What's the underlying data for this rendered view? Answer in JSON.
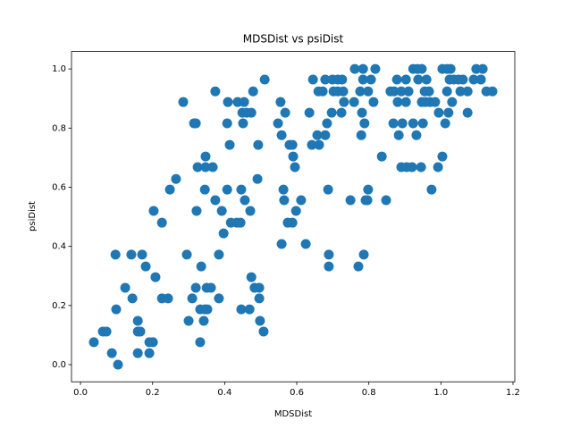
{
  "chart_data": {
    "type": "scatter",
    "title": "MDSDist vs psiDist",
    "xlabel": "MDSDist",
    "ylabel": "psiDist",
    "color": "#1f77b4",
    "x": [
      0.037,
      0.062,
      0.072,
      0.087,
      0.104,
      0.099,
      0.097,
      0.124,
      0.141,
      0.144,
      0.159,
      0.159,
      0.166,
      0.159,
      0.171,
      0.181,
      0.191,
      0.201,
      0.191,
      0.208,
      0.203,
      0.226,
      0.226,
      0.243,
      0.248,
      0.265,
      0.285,
      0.295,
      0.3,
      0.31,
      0.315,
      0.32,
      0.32,
      0.322,
      0.325,
      0.332,
      0.332,
      0.335,
      0.342,
      0.345,
      0.352,
      0.347,
      0.347,
      0.345,
      0.35,
      0.362,
      0.367,
      0.374,
      0.374,
      0.384,
      0.384,
      0.392,
      0.397,
      0.407,
      0.407,
      0.409,
      0.414,
      0.417,
      0.434,
      0.444,
      0.436,
      0.446,
      0.446,
      0.449,
      0.461,
      0.474,
      0.451,
      0.454,
      0.456,
      0.469,
      0.471,
      0.474,
      0.479,
      0.483,
      0.491,
      0.493,
      0.496,
      0.496,
      0.498,
      0.508,
      0.511,
      0.548,
      0.555,
      0.558,
      0.558,
      0.563,
      0.568,
      0.565,
      0.575,
      0.588,
      0.58,
      0.588,
      0.59,
      0.595,
      0.598,
      0.612,
      0.625,
      0.635,
      0.642,
      0.645,
      0.657,
      0.66,
      0.672,
      0.662,
      0.679,
      0.679,
      0.684,
      0.687,
      0.689,
      0.689,
      0.697,
      0.699,
      0.714,
      0.726,
      0.702,
      0.714,
      0.729,
      0.724,
      0.731,
      0.749,
      0.759,
      0.761,
      0.771,
      0.776,
      0.779,
      0.781,
      0.784,
      0.786,
      0.784,
      0.788,
      0.791,
      0.796,
      0.798,
      0.798,
      0.806,
      0.813,
      0.818,
      0.836,
      0.848,
      0.86,
      0.87,
      0.868,
      0.878,
      0.88,
      0.883,
      0.89,
      0.89,
      0.905,
      0.92,
      0.893,
      0.903,
      0.903,
      0.91,
      0.923,
      0.935,
      0.947,
      0.923,
      0.932,
      0.937,
      0.945,
      0.947,
      0.957,
      0.95,
      0.955,
      0.967,
      0.96,
      0.97,
      0.984,
      0.974,
      1.004,
      0.994,
      0.992,
      1.004,
      1.017,
      1.027,
      1.012,
      1.017,
      1.021,
      1.024,
      1.036,
      1.049,
      1.061,
      1.031,
      1.054,
      1.074,
      1.074,
      1.091,
      1.098,
      1.116,
      1.111,
      1.126,
      1.143
    ],
    "values": [
      0.076,
      0.112,
      0.112,
      0.039,
      0.0,
      0.187,
      0.372,
      0.26,
      0.372,
      0.224,
      0.148,
      0.112,
      0.112,
      0.039,
      0.372,
      0.332,
      0.076,
      0.076,
      0.039,
      0.296,
      0.52,
      0.48,
      0.224,
      0.224,
      0.592,
      0.628,
      0.888,
      0.372,
      0.148,
      0.224,
      0.816,
      0.816,
      0.26,
      0.52,
      0.668,
      0.187,
      0.076,
      0.332,
      0.148,
      0.187,
      0.187,
      0.704,
      0.668,
      0.592,
      0.26,
      0.26,
      0.668,
      0.924,
      0.556,
      0.372,
      0.224,
      0.52,
      0.444,
      0.592,
      0.816,
      0.888,
      0.743,
      0.48,
      0.48,
      0.48,
      0.888,
      0.592,
      0.187,
      0.852,
      0.852,
      0.852,
      0.816,
      0.888,
      0.556,
      0.187,
      0.52,
      0.296,
      0.924,
      0.26,
      0.628,
      0.743,
      0.224,
      0.26,
      0.148,
      0.112,
      0.964,
      0.816,
      0.888,
      0.776,
      0.408,
      0.592,
      0.852,
      0.556,
      0.48,
      0.48,
      0.743,
      0.743,
      0.704,
      0.668,
      0.52,
      0.556,
      0.408,
      0.852,
      0.743,
      0.964,
      0.776,
      0.924,
      0.924,
      0.743,
      0.964,
      0.776,
      0.816,
      0.592,
      0.372,
      0.332,
      0.852,
      0.964,
      0.964,
      0.964,
      0.924,
      0.924,
      0.924,
      0.852,
      0.888,
      0.556,
      0.888,
      1.0,
      0.332,
      0.924,
      0.776,
      0.852,
      1.0,
      0.372,
      0.964,
      0.816,
      0.556,
      0.556,
      0.592,
      0.924,
      0.964,
      0.888,
      1.0,
      0.704,
      0.556,
      0.924,
      0.924,
      0.816,
      0.964,
      0.888,
      0.776,
      0.924,
      0.668,
      0.668,
      0.668,
      0.816,
      0.888,
      0.964,
      0.924,
      1.0,
      1.0,
      1.0,
      0.816,
      0.776,
      0.964,
      0.668,
      0.888,
      0.888,
      0.816,
      0.924,
      0.924,
      0.964,
      0.888,
      0.888,
      0.592,
      0.704,
      0.852,
      0.668,
      1.0,
      1.0,
      1.0,
      0.816,
      0.924,
      0.852,
      0.964,
      0.964,
      0.964,
      0.964,
      0.888,
      0.924,
      0.852,
      0.924,
      0.964,
      1.0,
      1.0,
      0.964,
      0.924,
      0.924
    ],
    "xlim": [
      -0.025,
      1.205
    ],
    "ylim": [
      -0.058,
      1.059
    ],
    "xticks": [
      {
        "value": 0,
        "label": "0.0"
      },
      0.2,
      0.4,
      0.6,
      0.8,
      {
        "value": 1,
        "label": "1.0"
      },
      1.2
    ],
    "yticks": [
      {
        "value": 0,
        "label": "0.0"
      },
      0.2,
      0.4,
      0.6,
      0.8,
      {
        "value": 1,
        "label": "1.0"
      }
    ]
  }
}
